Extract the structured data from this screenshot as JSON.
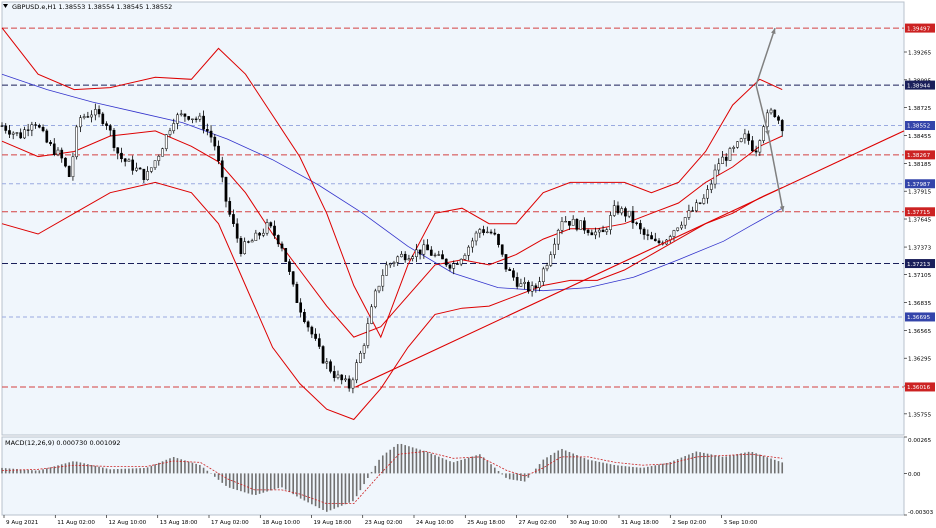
{
  "symbol_label": "GBPUSD.e,H1  1.38553 1.38554 1.38545 1.38552",
  "macd_label": "MACD(12,26,9) 0.000730 0.001092",
  "colors": {
    "background": "#f0f6fc",
    "candle": "#000000",
    "band": "#dd0000",
    "ma": "#3333cc",
    "red_level": "#d44040",
    "dark_level": "#1a1f5a",
    "light_level": "#9aaae0",
    "trend": "#dd0000",
    "arrow": "#808080",
    "hist": "#707070",
    "signal": "#cc2222"
  },
  "chart_data": {
    "type": "candlestick",
    "price_axis": {
      "ticks": [
        1.39265,
        1.38995,
        1.38725,
        1.38455,
        1.38185,
        1.37915,
        1.37645,
        1.37373,
        1.37105,
        1.36835,
        1.36565,
        1.36295,
        1.36025,
        1.35755
      ]
    },
    "time_axis": {
      "ticks": [
        "9 Aug 2021",
        "11 Aug 02:00",
        "12 Aug 10:00",
        "13 Aug 18:00",
        "17 Aug 02:00",
        "18 Aug 10:00",
        "19 Aug 18:00",
        "23 Aug 02:00",
        "24 Aug 10:00",
        "25 Aug 18:00",
        "27 Aug 02:00",
        "30 Aug 10:00",
        "31 Aug 18:00",
        "2 Sep 02:00",
        "3 Sep 10:00"
      ]
    },
    "levels": [
      {
        "value": 1.39497,
        "style": "red",
        "label": "1.39497"
      },
      {
        "value": 1.38944,
        "style": "dark",
        "label": "1.38944"
      },
      {
        "value": 1.38552,
        "style": "light",
        "label": "1.38552"
      },
      {
        "value": 1.38267,
        "style": "red",
        "label": "1.38267"
      },
      {
        "value": 1.37987,
        "style": "light",
        "label": "1.37987"
      },
      {
        "value": 1.37715,
        "style": "red",
        "label": "1.37715"
      },
      {
        "value": 1.37213,
        "style": "dark",
        "label": "1.37213"
      },
      {
        "value": 1.36695,
        "style": "light",
        "label": "1.36695"
      },
      {
        "value": 1.36016,
        "style": "red",
        "label": "1.36016"
      }
    ],
    "trendline": [
      [
        0.392,
        1.36016
      ],
      [
        1.0,
        1.385
      ]
    ],
    "arrows": [
      {
        "from": [
          0.836,
          1.38944
        ],
        "to": [
          0.857,
          1.39497
        ]
      },
      {
        "from": [
          0.836,
          1.38944
        ],
        "to": [
          0.85,
          1.3845
        ]
      },
      {
        "from": [
          0.85,
          1.3845
        ],
        "to": [
          0.866,
          1.37715
        ]
      }
    ],
    "price_path": [
      [
        0.0,
        1.3855
      ],
      [
        0.02,
        1.3845
      ],
      [
        0.035,
        1.3862
      ],
      [
        0.05,
        1.3838
      ],
      [
        0.065,
        1.3825
      ],
      [
        0.075,
        1.3805
      ],
      [
        0.085,
        1.3862
      ],
      [
        0.1,
        1.3868
      ],
      [
        0.115,
        1.386
      ],
      [
        0.13,
        1.3825
      ],
      [
        0.145,
        1.3815
      ],
      [
        0.16,
        1.3805
      ],
      [
        0.175,
        1.383
      ],
      [
        0.19,
        1.3862
      ],
      [
        0.205,
        1.3866
      ],
      [
        0.22,
        1.386
      ],
      [
        0.235,
        1.384
      ],
      [
        0.25,
        1.3775
      ],
      [
        0.265,
        1.3735
      ],
      [
        0.28,
        1.3745
      ],
      [
        0.295,
        1.3758
      ],
      [
        0.31,
        1.374
      ],
      [
        0.325,
        1.369
      ],
      [
        0.34,
        1.366
      ],
      [
        0.355,
        1.363
      ],
      [
        0.37,
        1.3612
      ],
      [
        0.385,
        1.3602
      ],
      [
        0.4,
        1.364
      ],
      [
        0.415,
        1.3695
      ],
      [
        0.425,
        1.3718
      ],
      [
        0.44,
        1.3728
      ],
      [
        0.455,
        1.3732
      ],
      [
        0.47,
        1.3735
      ],
      [
        0.485,
        1.3725
      ],
      [
        0.5,
        1.372
      ],
      [
        0.515,
        1.3735
      ],
      [
        0.53,
        1.3755
      ],
      [
        0.545,
        1.375
      ],
      [
        0.56,
        1.3715
      ],
      [
        0.575,
        1.37
      ],
      [
        0.59,
        1.3695
      ],
      [
        0.605,
        1.3725
      ],
      [
        0.62,
        1.3765
      ],
      [
        0.635,
        1.376
      ],
      [
        0.65,
        1.3755
      ],
      [
        0.665,
        1.3748
      ],
      [
        0.68,
        1.3775
      ],
      [
        0.695,
        1.3768
      ],
      [
        0.71,
        1.375
      ],
      [
        0.725,
        1.374
      ],
      [
        0.735,
        1.3745
      ],
      [
        0.75,
        1.376
      ],
      [
        0.765,
        1.3772
      ],
      [
        0.78,
        1.3785
      ],
      [
        0.795,
        1.382
      ],
      [
        0.81,
        1.383
      ],
      [
        0.825,
        1.3845
      ],
      [
        0.835,
        1.383
      ],
      [
        0.845,
        1.386
      ],
      [
        0.855,
        1.387
      ],
      [
        0.865,
        1.3855
      ]
    ],
    "band_upper": [
      [
        0.0,
        1.395
      ],
      [
        0.04,
        1.3905
      ],
      [
        0.08,
        1.389
      ],
      [
        0.12,
        1.3892
      ],
      [
        0.17,
        1.3902
      ],
      [
        0.21,
        1.39
      ],
      [
        0.24,
        1.393
      ],
      [
        0.27,
        1.3905
      ],
      [
        0.3,
        1.3865
      ],
      [
        0.33,
        1.3825
      ],
      [
        0.36,
        1.377
      ],
      [
        0.39,
        1.37
      ],
      [
        0.42,
        1.365
      ],
      [
        0.45,
        1.372
      ],
      [
        0.48,
        1.377
      ],
      [
        0.51,
        1.3775
      ],
      [
        0.54,
        1.376
      ],
      [
        0.57,
        1.376
      ],
      [
        0.6,
        1.379
      ],
      [
        0.63,
        1.38
      ],
      [
        0.66,
        1.38
      ],
      [
        0.69,
        1.38
      ],
      [
        0.72,
        1.379
      ],
      [
        0.75,
        1.38
      ],
      [
        0.78,
        1.383
      ],
      [
        0.81,
        1.3875
      ],
      [
        0.84,
        1.39
      ],
      [
        0.865,
        1.389
      ]
    ],
    "band_middle": [
      [
        0.0,
        1.384
      ],
      [
        0.04,
        1.3825
      ],
      [
        0.08,
        1.383
      ],
      [
        0.12,
        1.3845
      ],
      [
        0.17,
        1.385
      ],
      [
        0.21,
        1.3835
      ],
      [
        0.24,
        1.382
      ],
      [
        0.27,
        1.379
      ],
      [
        0.3,
        1.375
      ],
      [
        0.33,
        1.3715
      ],
      [
        0.36,
        1.368
      ],
      [
        0.39,
        1.365
      ],
      [
        0.42,
        1.366
      ],
      [
        0.45,
        1.369
      ],
      [
        0.48,
        1.372
      ],
      [
        0.51,
        1.3725
      ],
      [
        0.54,
        1.372
      ],
      [
        0.57,
        1.373
      ],
      [
        0.6,
        1.3745
      ],
      [
        0.63,
        1.3755
      ],
      [
        0.66,
        1.3755
      ],
      [
        0.69,
        1.376
      ],
      [
        0.72,
        1.377
      ],
      [
        0.75,
        1.378
      ],
      [
        0.78,
        1.38
      ],
      [
        0.81,
        1.3815
      ],
      [
        0.84,
        1.3835
      ],
      [
        0.865,
        1.3845
      ]
    ],
    "band_lower": [
      [
        0.0,
        1.376
      ],
      [
        0.04,
        1.375
      ],
      [
        0.08,
        1.377
      ],
      [
        0.12,
        1.379
      ],
      [
        0.17,
        1.38
      ],
      [
        0.21,
        1.379
      ],
      [
        0.24,
        1.376
      ],
      [
        0.27,
        1.37
      ],
      [
        0.3,
        1.364
      ],
      [
        0.33,
        1.3605
      ],
      [
        0.36,
        1.358
      ],
      [
        0.39,
        1.357
      ],
      [
        0.42,
        1.36
      ],
      [
        0.45,
        1.364
      ],
      [
        0.48,
        1.3672
      ],
      [
        0.51,
        1.3678
      ],
      [
        0.54,
        1.368
      ],
      [
        0.57,
        1.369
      ],
      [
        0.6,
        1.37
      ],
      [
        0.63,
        1.3705
      ],
      [
        0.66,
        1.3705
      ],
      [
        0.69,
        1.3715
      ],
      [
        0.72,
        1.373
      ],
      [
        0.75,
        1.3745
      ],
      [
        0.78,
        1.376
      ],
      [
        0.81,
        1.377
      ],
      [
        0.84,
        1.3785
      ],
      [
        0.865,
        1.3795
      ]
    ],
    "ma_slow": [
      [
        0.0,
        1.3905
      ],
      [
        0.05,
        1.389
      ],
      [
        0.1,
        1.3878
      ],
      [
        0.15,
        1.3868
      ],
      [
        0.2,
        1.3858
      ],
      [
        0.25,
        1.3842
      ],
      [
        0.3,
        1.3822
      ],
      [
        0.35,
        1.3798
      ],
      [
        0.4,
        1.377
      ],
      [
        0.45,
        1.3738
      ],
      [
        0.5,
        1.3712
      ],
      [
        0.55,
        1.3698
      ],
      [
        0.6,
        1.3695
      ],
      [
        0.65,
        1.3698
      ],
      [
        0.7,
        1.3708
      ],
      [
        0.75,
        1.3725
      ],
      [
        0.8,
        1.3743
      ],
      [
        0.83,
        1.3758
      ],
      [
        0.865,
        1.3775
      ]
    ],
    "macd": {
      "range": [
        -0.00303,
        0.00265
      ],
      "ticks": [
        0.00265,
        0.0,
        -0.00303
      ],
      "histogram": [
        [
          0.0,
          0.0004
        ],
        [
          0.04,
          0.0002
        ],
        [
          0.08,
          0.0009
        ],
        [
          0.12,
          0.0003
        ],
        [
          0.16,
          0.0004
        ],
        [
          0.19,
          0.0012
        ],
        [
          0.22,
          0.0006
        ],
        [
          0.25,
          -0.001
        ],
        [
          0.28,
          -0.0016
        ],
        [
          0.31,
          -0.001
        ],
        [
          0.33,
          -0.0018
        ],
        [
          0.36,
          -0.0028
        ],
        [
          0.39,
          -0.002
        ],
        [
          0.42,
          0.0012
        ],
        [
          0.44,
          0.0022
        ],
        [
          0.47,
          0.0016
        ],
        [
          0.5,
          0.0008
        ],
        [
          0.53,
          0.0014
        ],
        [
          0.56,
          -0.0004
        ],
        [
          0.58,
          -0.0006
        ],
        [
          0.6,
          0.001
        ],
        [
          0.62,
          0.0018
        ],
        [
          0.65,
          0.001
        ],
        [
          0.68,
          0.0006
        ],
        [
          0.71,
          0.0004
        ],
        [
          0.74,
          0.0008
        ],
        [
          0.77,
          0.0016
        ],
        [
          0.8,
          0.0012
        ],
        [
          0.83,
          0.0016
        ],
        [
          0.865,
          0.0008
        ]
      ],
      "signal": [
        [
          0.0,
          0.0002
        ],
        [
          0.04,
          0.0003
        ],
        [
          0.08,
          0.0006
        ],
        [
          0.12,
          0.0005
        ],
        [
          0.16,
          0.0005
        ],
        [
          0.19,
          0.0009
        ],
        [
          0.22,
          0.0008
        ],
        [
          0.25,
          -0.0004
        ],
        [
          0.28,
          -0.0012
        ],
        [
          0.31,
          -0.0012
        ],
        [
          0.33,
          -0.0015
        ],
        [
          0.36,
          -0.0022
        ],
        [
          0.39,
          -0.0022
        ],
        [
          0.42,
          0.0
        ],
        [
          0.44,
          0.0014
        ],
        [
          0.47,
          0.0016
        ],
        [
          0.5,
          0.0011
        ],
        [
          0.53,
          0.0012
        ],
        [
          0.56,
          0.0002
        ],
        [
          0.58,
          -0.0002
        ],
        [
          0.6,
          0.0004
        ],
        [
          0.62,
          0.0012
        ],
        [
          0.65,
          0.0012
        ],
        [
          0.68,
          0.0008
        ],
        [
          0.71,
          0.0006
        ],
        [
          0.74,
          0.0007
        ],
        [
          0.77,
          0.0012
        ],
        [
          0.8,
          0.0013
        ],
        [
          0.83,
          0.0014
        ],
        [
          0.865,
          0.0011
        ]
      ]
    }
  }
}
